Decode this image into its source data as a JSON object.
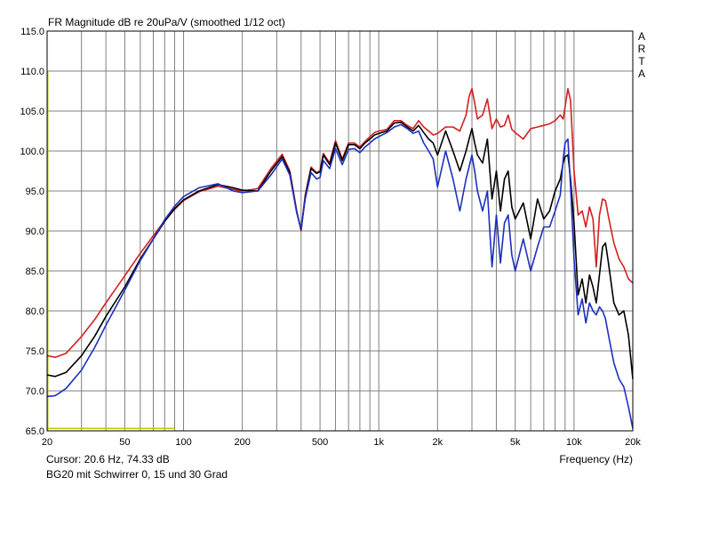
{
  "chart_data": {
    "type": "line",
    "title": "FR Magnitude dB re 20uPa/V (smoothed 1/12 oct)",
    "watermark": [
      "A",
      "R",
      "T",
      "A"
    ],
    "xlabel": "Frequency (Hz)",
    "ylabel": "",
    "x_scale": "log",
    "xlim": [
      20,
      20000
    ],
    "ylim": [
      65,
      115
    ],
    "grid": true,
    "y_ticks": [
      "115.0",
      "110.0",
      "105.0",
      "100.0",
      "95.0",
      "90.0",
      "85.0",
      "80.0",
      "75.0",
      "70.0",
      "65.0"
    ],
    "x_tick_labels": [
      {
        "value": 20,
        "label": "20"
      },
      {
        "value": 50,
        "label": "50"
      },
      {
        "value": 100,
        "label": "100"
      },
      {
        "value": 200,
        "label": "200"
      },
      {
        "value": 500,
        "label": "500"
      },
      {
        "value": 1000,
        "label": "1k"
      },
      {
        "value": 2000,
        "label": "2k"
      },
      {
        "value": 5000,
        "label": "5k"
      },
      {
        "value": 10000,
        "label": "10k"
      },
      {
        "value": 20000,
        "label": "20k"
      }
    ],
    "cursor_text": "Cursor: 20.6 Hz, 74.33 dB",
    "caption": "BG20 mit Schwirrer 0, 15 und 30 Grad",
    "colors": {
      "grid": "#808080",
      "background": "#ffffff",
      "red_series": "#d42020",
      "black_series": "#000000",
      "blue_series": "#1c2fc0",
      "marker": "#c8c800"
    },
    "marker_line": {
      "x": [
        20,
        90
      ],
      "y": 65.3
    },
    "series": [
      {
        "color": "#d42020",
        "x": [
          20,
          22,
          25,
          30,
          35,
          40,
          50,
          60,
          70,
          80,
          90,
          100,
          120,
          150,
          180,
          200,
          240,
          280,
          320,
          350,
          380,
          400,
          420,
          450,
          480,
          500,
          520,
          560,
          600,
          650,
          700,
          750,
          800,
          850,
          900,
          950,
          1000,
          1100,
          1200,
          1300,
          1400,
          1500,
          1600,
          1700,
          1800,
          1900,
          2000,
          2200,
          2400,
          2600,
          2800,
          2900,
          3000,
          3100,
          3200,
          3400,
          3600,
          3800,
          4000,
          4200,
          4400,
          4600,
          4800,
          5000,
          5500,
          6000,
          6500,
          7000,
          7500,
          8000,
          8500,
          8800,
          9000,
          9300,
          9600,
          10000,
          10500,
          11000,
          11500,
          12000,
          12500,
          13000,
          13500,
          14000,
          14500,
          15000,
          16000,
          17000,
          18000,
          19000,
          20000
        ],
        "y": [
          74.4,
          74.2,
          74.7,
          76.8,
          78.9,
          81.0,
          84.4,
          87.2,
          89.4,
          91.3,
          92.7,
          93.8,
          94.9,
          95.6,
          95.2,
          95.0,
          95.3,
          97.8,
          99.6,
          97.5,
          92.5,
          90.0,
          94.5,
          98.0,
          97.3,
          97.5,
          99.7,
          98.5,
          101.3,
          99.0,
          101.0,
          101.0,
          100.5,
          101.2,
          101.8,
          102.3,
          102.5,
          102.7,
          103.8,
          103.8,
          103.2,
          102.8,
          103.8,
          103.0,
          102.5,
          102.0,
          102.2,
          103.0,
          103.0,
          102.5,
          104.5,
          106.8,
          107.8,
          106.0,
          104.0,
          104.5,
          106.5,
          102.8,
          104.0,
          103.0,
          103.2,
          104.5,
          102.7,
          102.3,
          101.5,
          102.8,
          103.0,
          103.2,
          103.4,
          103.8,
          104.5,
          104.0,
          105.5,
          107.8,
          106.3,
          97.5,
          92.0,
          92.5,
          90.5,
          93.0,
          91.5,
          85.5,
          92.0,
          94.0,
          93.8,
          91.8,
          88.5,
          86.5,
          85.5,
          84.0,
          83.5
        ]
      },
      {
        "color": "#000000",
        "x": [
          20,
          22,
          25,
          30,
          35,
          40,
          50,
          60,
          70,
          80,
          90,
          100,
          120,
          150,
          180,
          200,
          240,
          280,
          320,
          350,
          380,
          400,
          420,
          450,
          480,
          500,
          520,
          560,
          600,
          650,
          700,
          750,
          800,
          850,
          900,
          950,
          1000,
          1100,
          1200,
          1300,
          1400,
          1500,
          1600,
          1700,
          1800,
          1900,
          2000,
          2200,
          2400,
          2600,
          2800,
          2900,
          3000,
          3100,
          3200,
          3400,
          3600,
          3800,
          4000,
          4200,
          4400,
          4600,
          4800,
          5000,
          5500,
          6000,
          6500,
          7000,
          7500,
          8000,
          8500,
          8800,
          9000,
          9300,
          9600,
          10000,
          10500,
          11000,
          11500,
          12000,
          12500,
          13000,
          13500,
          14000,
          14500,
          15000,
          16000,
          17000,
          18000,
          19000,
          20000
        ],
        "y": [
          72.0,
          71.8,
          72.3,
          74.4,
          76.8,
          79.3,
          83.0,
          86.5,
          89.0,
          91.2,
          92.8,
          93.9,
          95.0,
          95.8,
          95.4,
          95.1,
          95.0,
          97.5,
          99.3,
          97.3,
          92.3,
          90.2,
          94.2,
          97.8,
          97.2,
          97.4,
          99.5,
          98.3,
          101.0,
          98.8,
          100.8,
          100.8,
          100.3,
          101.0,
          101.5,
          102.0,
          102.2,
          102.5,
          103.5,
          103.6,
          103.0,
          102.5,
          103.2,
          102.3,
          101.5,
          101.0,
          99.5,
          102.5,
          100.0,
          97.5,
          100.0,
          101.5,
          102.8,
          101.0,
          99.5,
          98.5,
          101.5,
          94.0,
          97.5,
          92.5,
          96.5,
          97.5,
          93.0,
          91.5,
          93.5,
          89.0,
          94.0,
          91.5,
          92.5,
          95.0,
          96.5,
          98.5,
          99.3,
          99.5,
          96.5,
          91.0,
          82.0,
          84.0,
          81.0,
          84.5,
          83.0,
          81.0,
          84.5,
          88.0,
          88.5,
          86.0,
          81.0,
          79.5,
          80.0,
          77.0,
          71.5
        ]
      },
      {
        "color": "#1c2fc0",
        "x": [
          20,
          22,
          25,
          30,
          35,
          40,
          50,
          60,
          70,
          80,
          90,
          100,
          120,
          150,
          180,
          200,
          240,
          280,
          320,
          350,
          380,
          400,
          420,
          450,
          480,
          500,
          520,
          560,
          600,
          650,
          700,
          750,
          800,
          850,
          900,
          950,
          1000,
          1100,
          1200,
          1300,
          1400,
          1500,
          1600,
          1700,
          1800,
          1900,
          2000,
          2200,
          2400,
          2600,
          2800,
          2900,
          3000,
          3100,
          3200,
          3400,
          3600,
          3800,
          4000,
          4200,
          4400,
          4600,
          4800,
          5000,
          5500,
          6000,
          6500,
          7000,
          7500,
          8000,
          8500,
          8800,
          9000,
          9300,
          9600,
          10000,
          10500,
          11000,
          11500,
          12000,
          12500,
          13000,
          13500,
          14000,
          14500,
          15000,
          16000,
          17000,
          18000,
          19000,
          20000
        ],
        "y": [
          69.3,
          69.4,
          70.3,
          72.6,
          75.4,
          78.2,
          82.6,
          86.3,
          89.0,
          91.4,
          93.1,
          94.3,
          95.4,
          95.9,
          95.0,
          94.8,
          95.0,
          97.0,
          99.0,
          97.0,
          92.3,
          90.3,
          94.0,
          97.3,
          96.5,
          96.7,
          98.8,
          97.8,
          100.3,
          98.3,
          100.2,
          100.3,
          99.8,
          100.5,
          101.0,
          101.5,
          101.8,
          102.3,
          103.0,
          103.3,
          102.8,
          102.2,
          102.5,
          101.0,
          100.0,
          99.0,
          95.5,
          100.0,
          96.5,
          92.5,
          96.5,
          98.0,
          99.5,
          97.5,
          95.0,
          92.5,
          95.0,
          85.5,
          92.0,
          86.0,
          91.0,
          92.0,
          87.0,
          85.0,
          89.0,
          85.0,
          88.0,
          90.5,
          90.5,
          92.5,
          94.5,
          99.0,
          101.0,
          101.5,
          95.5,
          86.5,
          79.5,
          81.5,
          78.5,
          81.0,
          80.0,
          79.5,
          80.5,
          80.0,
          79.0,
          77.0,
          73.5,
          71.5,
          70.5,
          68.0,
          65.3
        ]
      }
    ]
  }
}
